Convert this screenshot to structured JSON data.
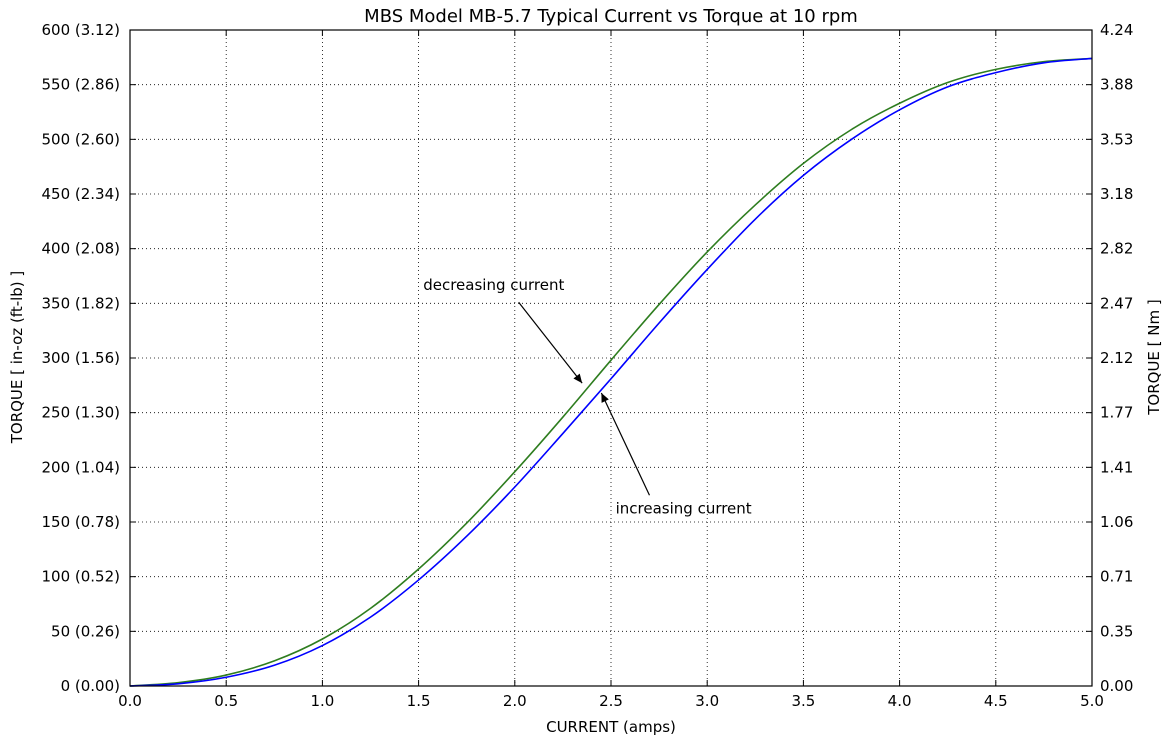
{
  "chart_data": {
    "type": "line",
    "title": "MBS Model MB-5.7 Typical Current vs Torque at 10 rpm",
    "xlabel": "CURRENT (amps)",
    "ylabel_left": "TORQUE [ in-oz (ft-lb) ]",
    "ylabel_right": "TORQUE [ Nm ]",
    "xlim": [
      0,
      5
    ],
    "ylim": [
      0,
      600
    ],
    "grid": true,
    "x_ticks": [
      "0.0",
      "0.5",
      "1.0",
      "1.5",
      "2.0",
      "2.5",
      "3.0",
      "3.5",
      "4.0",
      "4.5",
      "5.0"
    ],
    "y_ticks_left": [
      "0 (0.00)",
      "50 (0.26)",
      "100 (0.52)",
      "150 (0.78)",
      "200 (1.04)",
      "250 (1.30)",
      "300 (1.56)",
      "350 (1.82)",
      "400 (2.08)",
      "450 (2.34)",
      "500 (2.60)",
      "550 (2.86)",
      "600 (3.12)"
    ],
    "y_ticks_right": [
      "0.00",
      "0.35",
      "0.71",
      "1.06",
      "1.41",
      "1.77",
      "2.12",
      "2.47",
      "2.82",
      "3.18",
      "3.53",
      "3.88",
      "4.24"
    ],
    "series": [
      {
        "color": "#2e7d1f",
        "x": [
          0,
          0.25,
          0.5,
          0.75,
          1.0,
          1.25,
          1.5,
          1.75,
          2.0,
          2.25,
          2.5,
          2.75,
          3.0,
          3.25,
          3.5,
          3.75,
          4.0,
          4.25,
          4.5,
          4.75,
          5.0
        ],
        "y": [
          0,
          3,
          10,
          23,
          43,
          71,
          107,
          149,
          196,
          246,
          298,
          349,
          397,
          440,
          478,
          509,
          533,
          552,
          564,
          571,
          574
        ]
      },
      {
        "color": "#0000ff",
        "x": [
          0,
          0.25,
          0.5,
          0.75,
          1.0,
          1.25,
          1.5,
          1.75,
          2.0,
          2.25,
          2.5,
          2.75,
          3.0,
          3.25,
          3.5,
          3.75,
          4.0,
          4.25,
          4.5,
          4.75,
          5.0
        ],
        "y": [
          0,
          2,
          8,
          19,
          37,
          63,
          97,
          137,
          182,
          231,
          281,
          332,
          381,
          427,
          467,
          500,
          527,
          548,
          561,
          570,
          574
        ]
      }
    ],
    "annotations": [
      {
        "text": "decreasing current",
        "point": [
          2.35,
          277
        ],
        "text_at": [
          1.55,
          362
        ]
      },
      {
        "text": "increasing current",
        "point": [
          2.45,
          268
        ],
        "text_at": [
          2.55,
          158
        ]
      }
    ]
  }
}
